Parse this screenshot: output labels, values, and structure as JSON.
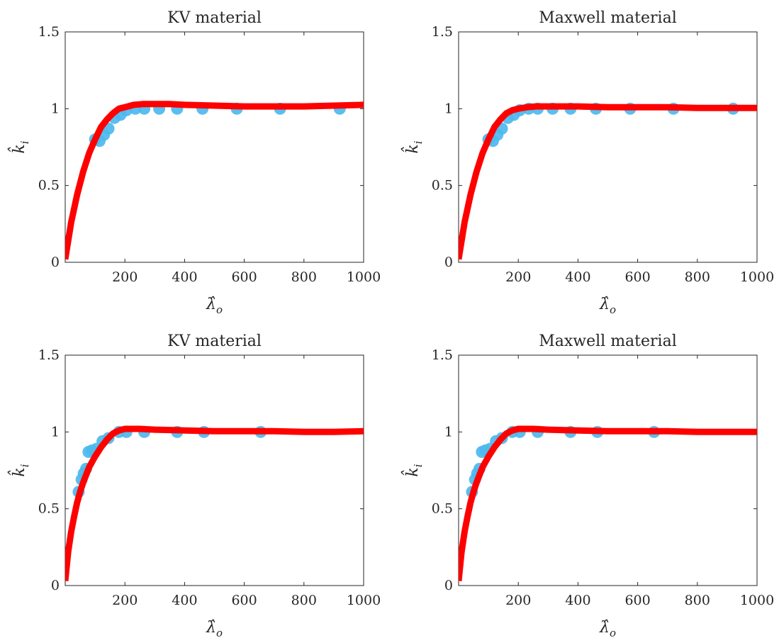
{
  "colors": {
    "fit_line": "#ff0000",
    "markers": "#4db8ee",
    "axes": "#262626"
  },
  "chart_data": [
    {
      "type": "scatter",
      "title": "KV material",
      "xlabel": "λ̂",
      "xlabel_sub": "o",
      "ylabel": "k̂",
      "ylabel_sub": "i",
      "xlim": [
        0,
        1000
      ],
      "ylim": [
        0,
        1.5
      ],
      "xticks": [
        200,
        400,
        600,
        800,
        1000
      ],
      "yticks": [
        0,
        0.5,
        1,
        1.5
      ],
      "ytick_labels": [
        "0",
        "0.5",
        "1",
        "1.5"
      ],
      "grid": false,
      "series": [
        {
          "kind": "scatter",
          "x": [
            100,
            115,
            130,
            145,
            165,
            185,
            205,
            235,
            265,
            315,
            375,
            460,
            575,
            720,
            920
          ],
          "y": [
            0.8,
            0.79,
            0.83,
            0.87,
            0.94,
            0.96,
            0.99,
            1.0,
            1.0,
            1.0,
            1.0,
            1.0,
            1.0,
            1.0,
            1.0
          ]
        },
        {
          "kind": "line",
          "x": [
            0,
            20,
            40,
            60,
            80,
            100,
            120,
            140,
            160,
            180,
            200,
            230,
            260,
            300,
            350,
            400,
            500,
            600,
            700,
            800,
            900,
            1000
          ],
          "y": [
            0.02,
            0.26,
            0.44,
            0.59,
            0.71,
            0.8,
            0.88,
            0.93,
            0.97,
            1.0,
            1.01,
            1.025,
            1.03,
            1.03,
            1.03,
            1.025,
            1.02,
            1.015,
            1.015,
            1.015,
            1.02,
            1.025
          ]
        }
      ]
    },
    {
      "type": "scatter",
      "title": "Maxwell material",
      "xlabel": "λ̂",
      "xlabel_sub": "o",
      "ylabel": "k̂",
      "ylabel_sub": "i",
      "xlim": [
        0,
        1000
      ],
      "ylim": [
        0,
        1.5
      ],
      "xticks": [
        200,
        400,
        600,
        800,
        1000
      ],
      "yticks": [
        0,
        0.5,
        1,
        1.5
      ],
      "ytick_labels": [
        "0",
        "0.5",
        "1",
        "1.5"
      ],
      "grid": false,
      "series": [
        {
          "kind": "scatter",
          "x": [
            100,
            115,
            130,
            145,
            165,
            185,
            205,
            235,
            265,
            315,
            375,
            460,
            575,
            720,
            920
          ],
          "y": [
            0.8,
            0.79,
            0.83,
            0.87,
            0.94,
            0.96,
            0.99,
            1.0,
            1.0,
            1.0,
            1.0,
            1.0,
            1.0,
            1.0,
            1.0
          ]
        },
        {
          "kind": "line",
          "x": [
            0,
            20,
            40,
            60,
            80,
            100,
            120,
            140,
            160,
            180,
            200,
            230,
            260,
            300,
            350,
            400,
            500,
            600,
            700,
            800,
            900,
            1000
          ],
          "y": [
            0.02,
            0.26,
            0.44,
            0.59,
            0.71,
            0.8,
            0.88,
            0.93,
            0.97,
            0.99,
            1.0,
            1.01,
            1.015,
            1.015,
            1.015,
            1.015,
            1.01,
            1.01,
            1.01,
            1.005,
            1.005,
            1.005
          ]
        }
      ]
    },
    {
      "type": "scatter",
      "title": "KV material",
      "xlabel": "λ̂",
      "xlabel_sub": "o",
      "ylabel": "k̂",
      "ylabel_sub": "i",
      "xlim": [
        0,
        1000
      ],
      "ylim": [
        0,
        1.5
      ],
      "xticks": [
        200,
        400,
        600,
        800,
        1000
      ],
      "yticks": [
        0,
        0.5,
        1,
        1.5
      ],
      "ytick_labels": [
        "0",
        "0.5",
        "1",
        "1.5"
      ],
      "grid": false,
      "series": [
        {
          "kind": "scatter",
          "x": [
            45,
            55,
            62,
            70,
            78,
            90,
            105,
            125,
            145,
            180,
            205,
            265,
            375,
            465,
            655
          ],
          "y": [
            0.61,
            0.69,
            0.73,
            0.76,
            0.87,
            0.88,
            0.89,
            0.94,
            0.96,
            1.0,
            1.0,
            1.0,
            1.0,
            1.0,
            1.0
          ]
        },
        {
          "kind": "line",
          "x": [
            0,
            10,
            20,
            30,
            40,
            50,
            60,
            80,
            100,
            120,
            140,
            160,
            180,
            200,
            220,
            250,
            300,
            400,
            500,
            600,
            700,
            800,
            900,
            1000
          ],
          "y": [
            0.03,
            0.22,
            0.35,
            0.45,
            0.54,
            0.61,
            0.67,
            0.77,
            0.84,
            0.9,
            0.95,
            0.99,
            1.01,
            1.02,
            1.02,
            1.02,
            1.015,
            1.01,
            1.005,
            1.005,
            1.005,
            1.0,
            1.0,
            1.005
          ]
        }
      ]
    },
    {
      "type": "scatter",
      "title": "Maxwell material",
      "xlabel": "λ̂",
      "xlabel_sub": "o",
      "ylabel": "k̂",
      "ylabel_sub": "i",
      "xlim": [
        0,
        1000
      ],
      "ylim": [
        0,
        1.5
      ],
      "xticks": [
        200,
        400,
        600,
        800,
        1000
      ],
      "yticks": [
        0,
        0.5,
        1,
        1.5
      ],
      "ytick_labels": [
        "0",
        "0.5",
        "1",
        "1.5"
      ],
      "grid": false,
      "series": [
        {
          "kind": "scatter",
          "x": [
            45,
            55,
            62,
            70,
            78,
            90,
            105,
            125,
            145,
            180,
            205,
            265,
            375,
            465,
            655
          ],
          "y": [
            0.61,
            0.69,
            0.73,
            0.76,
            0.87,
            0.88,
            0.89,
            0.94,
            0.96,
            1.0,
            1.0,
            1.0,
            1.0,
            1.0,
            1.0
          ]
        },
        {
          "kind": "line",
          "x": [
            0,
            10,
            20,
            30,
            40,
            50,
            60,
            80,
            100,
            120,
            140,
            160,
            180,
            200,
            220,
            250,
            300,
            400,
            500,
            600,
            700,
            800,
            900,
            1000
          ],
          "y": [
            0.03,
            0.22,
            0.35,
            0.45,
            0.54,
            0.61,
            0.67,
            0.77,
            0.84,
            0.9,
            0.95,
            0.99,
            1.01,
            1.02,
            1.02,
            1.02,
            1.015,
            1.01,
            1.005,
            1.005,
            1.005,
            1.0,
            1.0,
            1.0
          ]
        }
      ]
    }
  ]
}
